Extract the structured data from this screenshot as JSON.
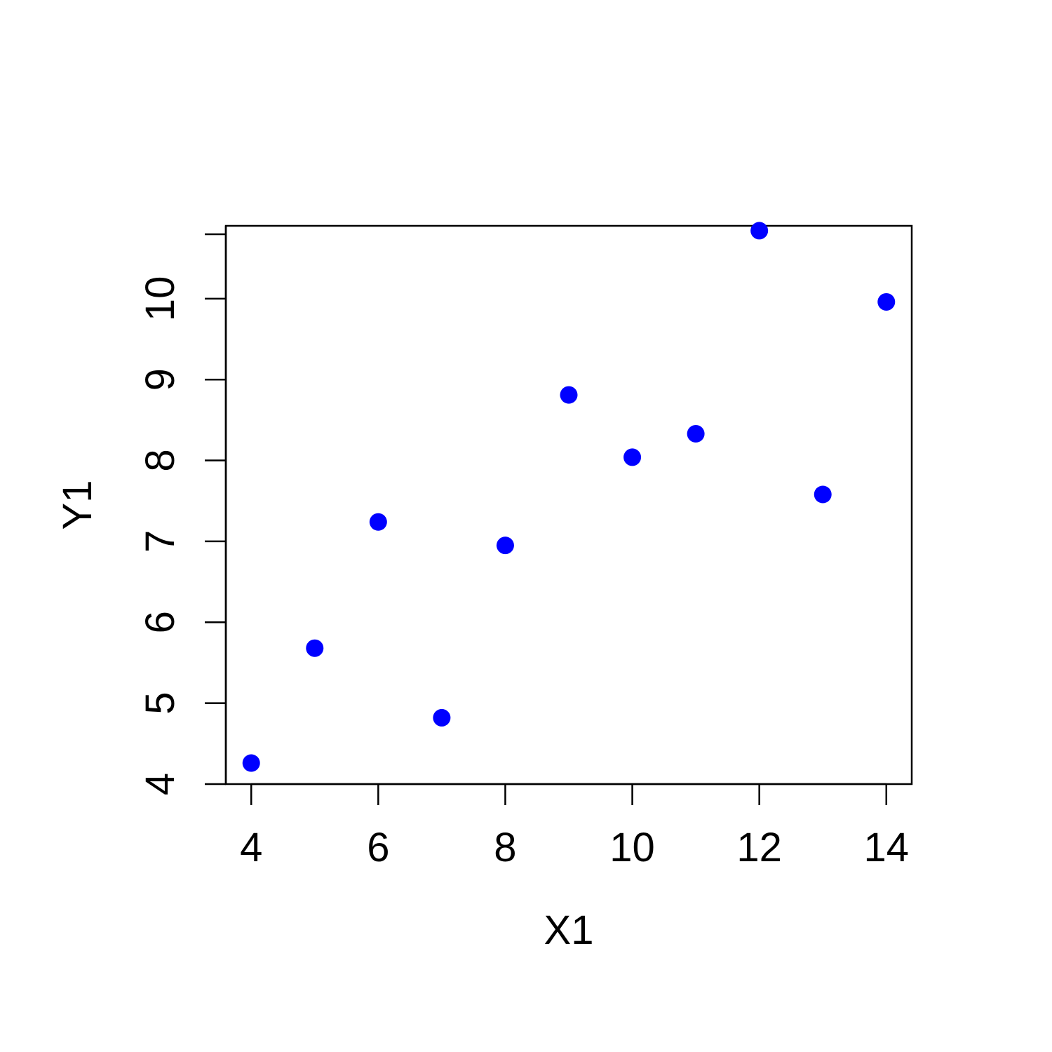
{
  "chart_data": {
    "type": "scatter",
    "title": "",
    "xlabel": "X1",
    "ylabel": "Y1",
    "xlim": [
      3.6,
      14.4
    ],
    "ylim": [
      4.0,
      10.9
    ],
    "x_ticks": [
      4,
      6,
      8,
      10,
      12,
      14
    ],
    "y_ticks": [
      4,
      5,
      6,
      7,
      8,
      9,
      10
    ],
    "grid": false,
    "point_color": "#0000ff",
    "axis_color": "#000000",
    "series": [
      {
        "x": [
          4,
          5,
          6,
          7,
          8,
          9,
          10,
          11,
          12,
          13,
          14
        ],
        "y": [
          4.26,
          5.68,
          7.24,
          4.82,
          6.95,
          8.81,
          8.04,
          8.33,
          10.84,
          7.58,
          9.96
        ]
      }
    ]
  }
}
